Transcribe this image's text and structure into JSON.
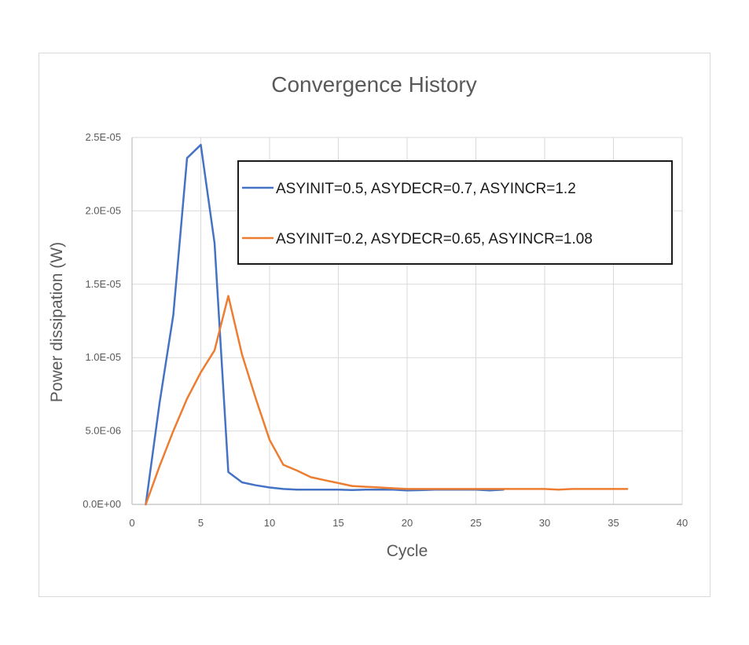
{
  "chart_data": {
    "type": "line",
    "title": "Convergence History",
    "xlabel": "Cycle",
    "ylabel": "Power dissipation (W)",
    "xlim": [
      0,
      40
    ],
    "ylim": [
      0,
      2.5e-05
    ],
    "xticks": [
      0,
      5,
      10,
      15,
      20,
      25,
      30,
      35,
      40
    ],
    "xtick_labels": [
      "0",
      "5",
      "10",
      "15",
      "20",
      "25",
      "30",
      "35",
      "40"
    ],
    "yticks": [
      0,
      5e-06,
      1e-05,
      1.5e-05,
      2e-05,
      2.5e-05
    ],
    "ytick_labels": [
      "0.0E+00",
      "5.0E-06",
      "1.0E-05",
      "1.5E-05",
      "2.0E-05",
      "2.5E-05"
    ],
    "grid": true,
    "legend_position": "top-right",
    "series": [
      {
        "name": "ASYINIT=0.5, ASYDECR=0.7, ASYINCR=1.2",
        "color": "#4472c4",
        "x": [
          1,
          2,
          3,
          4,
          5,
          6,
          7,
          8,
          9,
          10,
          11,
          12,
          13,
          14,
          15,
          16,
          17,
          18,
          19,
          20,
          21,
          22,
          23,
          24,
          25,
          26,
          27
        ],
        "y": [
          0,
          6.9e-06,
          1.29e-05,
          2.36e-05,
          2.45e-05,
          1.78e-05,
          2.2e-06,
          1.5e-06,
          1.3e-06,
          1.15e-06,
          1.05e-06,
          1e-06,
          1e-06,
          1e-06,
          1e-06,
          9.8e-07,
          1e-06,
          1e-06,
          1e-06,
          9.5e-07,
          9.7e-07,
          1e-06,
          1e-06,
          1e-06,
          1e-06,
          9.5e-07,
          1e-06
        ]
      },
      {
        "name": "ASYINIT=0.2, ASYDECR=0.65, ASYINCR=1.08",
        "color": "#ed7d31",
        "x": [
          1,
          2,
          3,
          4,
          5,
          6,
          7,
          8,
          9,
          10,
          11,
          12,
          13,
          14,
          15,
          16,
          17,
          18,
          19,
          20,
          21,
          22,
          23,
          24,
          25,
          26,
          27,
          28,
          29,
          30,
          31,
          32,
          33,
          34,
          35,
          36
        ],
        "y": [
          0,
          2.6e-06,
          5e-06,
          7.2e-06,
          9e-06,
          1.05e-05,
          1.42e-05,
          1.02e-05,
          7.2e-06,
          4.4e-06,
          2.7e-06,
          2.3e-06,
          1.85e-06,
          1.65e-06,
          1.45e-06,
          1.25e-06,
          1.2e-06,
          1.15e-06,
          1.1e-06,
          1.05e-06,
          1.05e-06,
          1.05e-06,
          1.05e-06,
          1.05e-06,
          1.05e-06,
          1.05e-06,
          1.05e-06,
          1.05e-06,
          1.05e-06,
          1.05e-06,
          1e-06,
          1.05e-06,
          1.05e-06,
          1.05e-06,
          1.05e-06,
          1.05e-06
        ]
      }
    ]
  }
}
